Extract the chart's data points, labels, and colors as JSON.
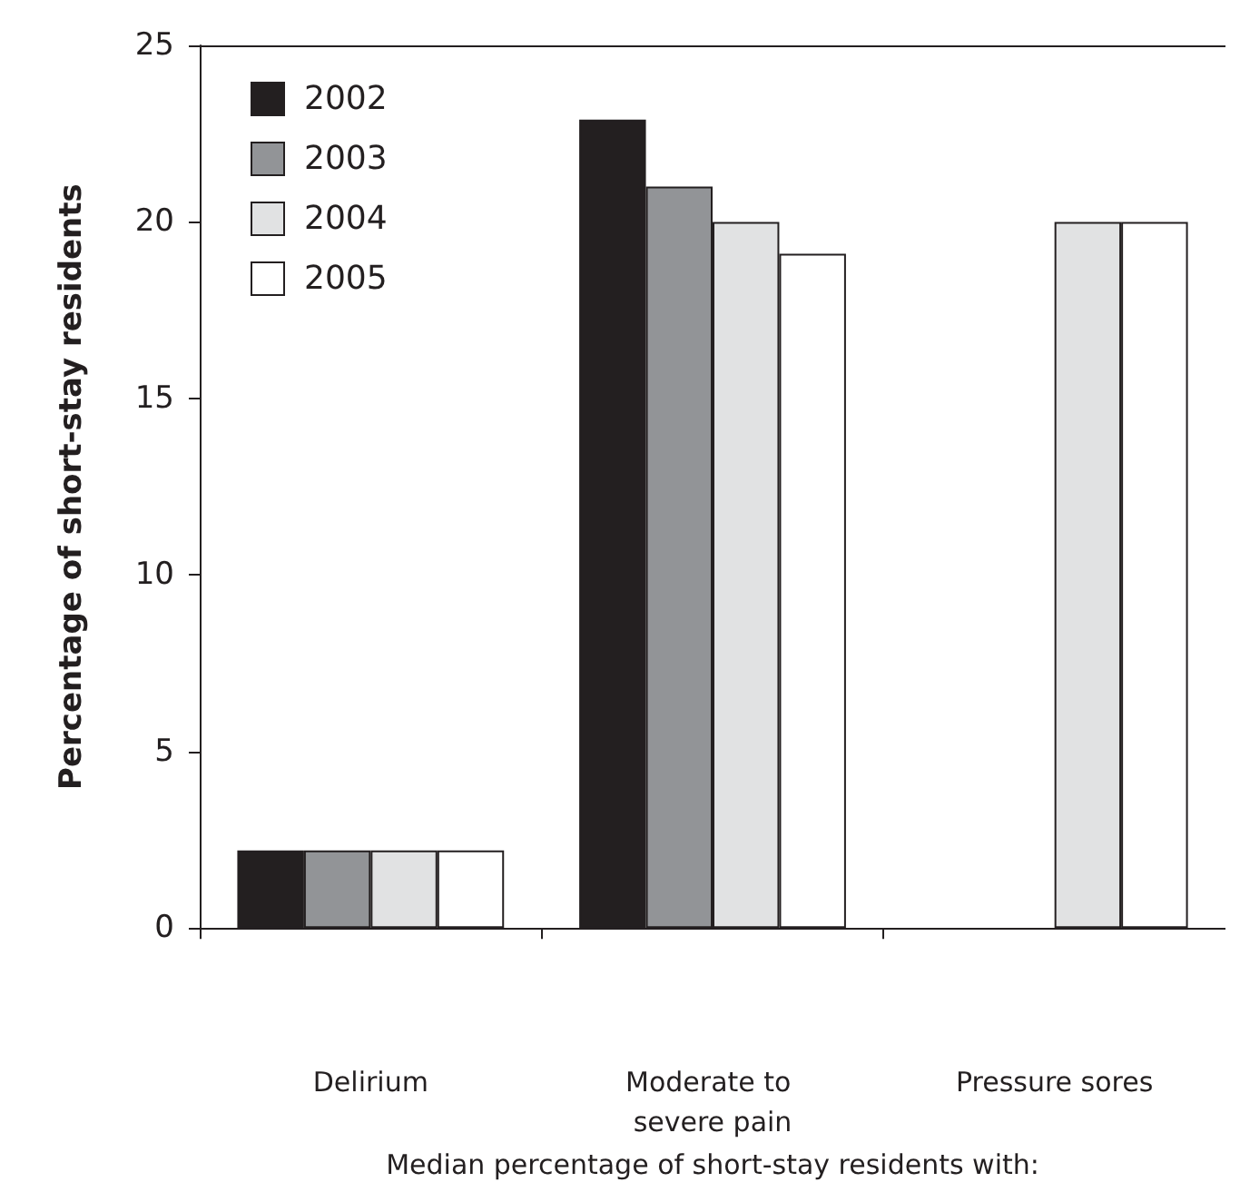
{
  "chart_data": {
    "type": "bar",
    "xlabel": "Median percentage of short-stay residents with:",
    "ylabel": "Percentage of short-stay residents",
    "categories": [
      "Delirium",
      "Moderate to severe pain",
      "Pressure sores"
    ],
    "series": [
      {
        "name": "2002",
        "color": "#231f20",
        "values": [
          2.2,
          22.9,
          null
        ]
      },
      {
        "name": "2003",
        "color": "#929497",
        "values": [
          2.2,
          21.0,
          null
        ]
      },
      {
        "name": "2004",
        "color": "#e1e2e3",
        "values": [
          2.2,
          20.0,
          20.0
        ]
      },
      {
        "name": "2005",
        "color": "#ffffff",
        "values": [
          2.2,
          19.1,
          20.0
        ]
      }
    ],
    "ylim": [
      0,
      25
    ],
    "yticks": [
      0,
      5,
      10,
      15,
      20,
      25
    ],
    "grid": false,
    "legend": "top left"
  }
}
